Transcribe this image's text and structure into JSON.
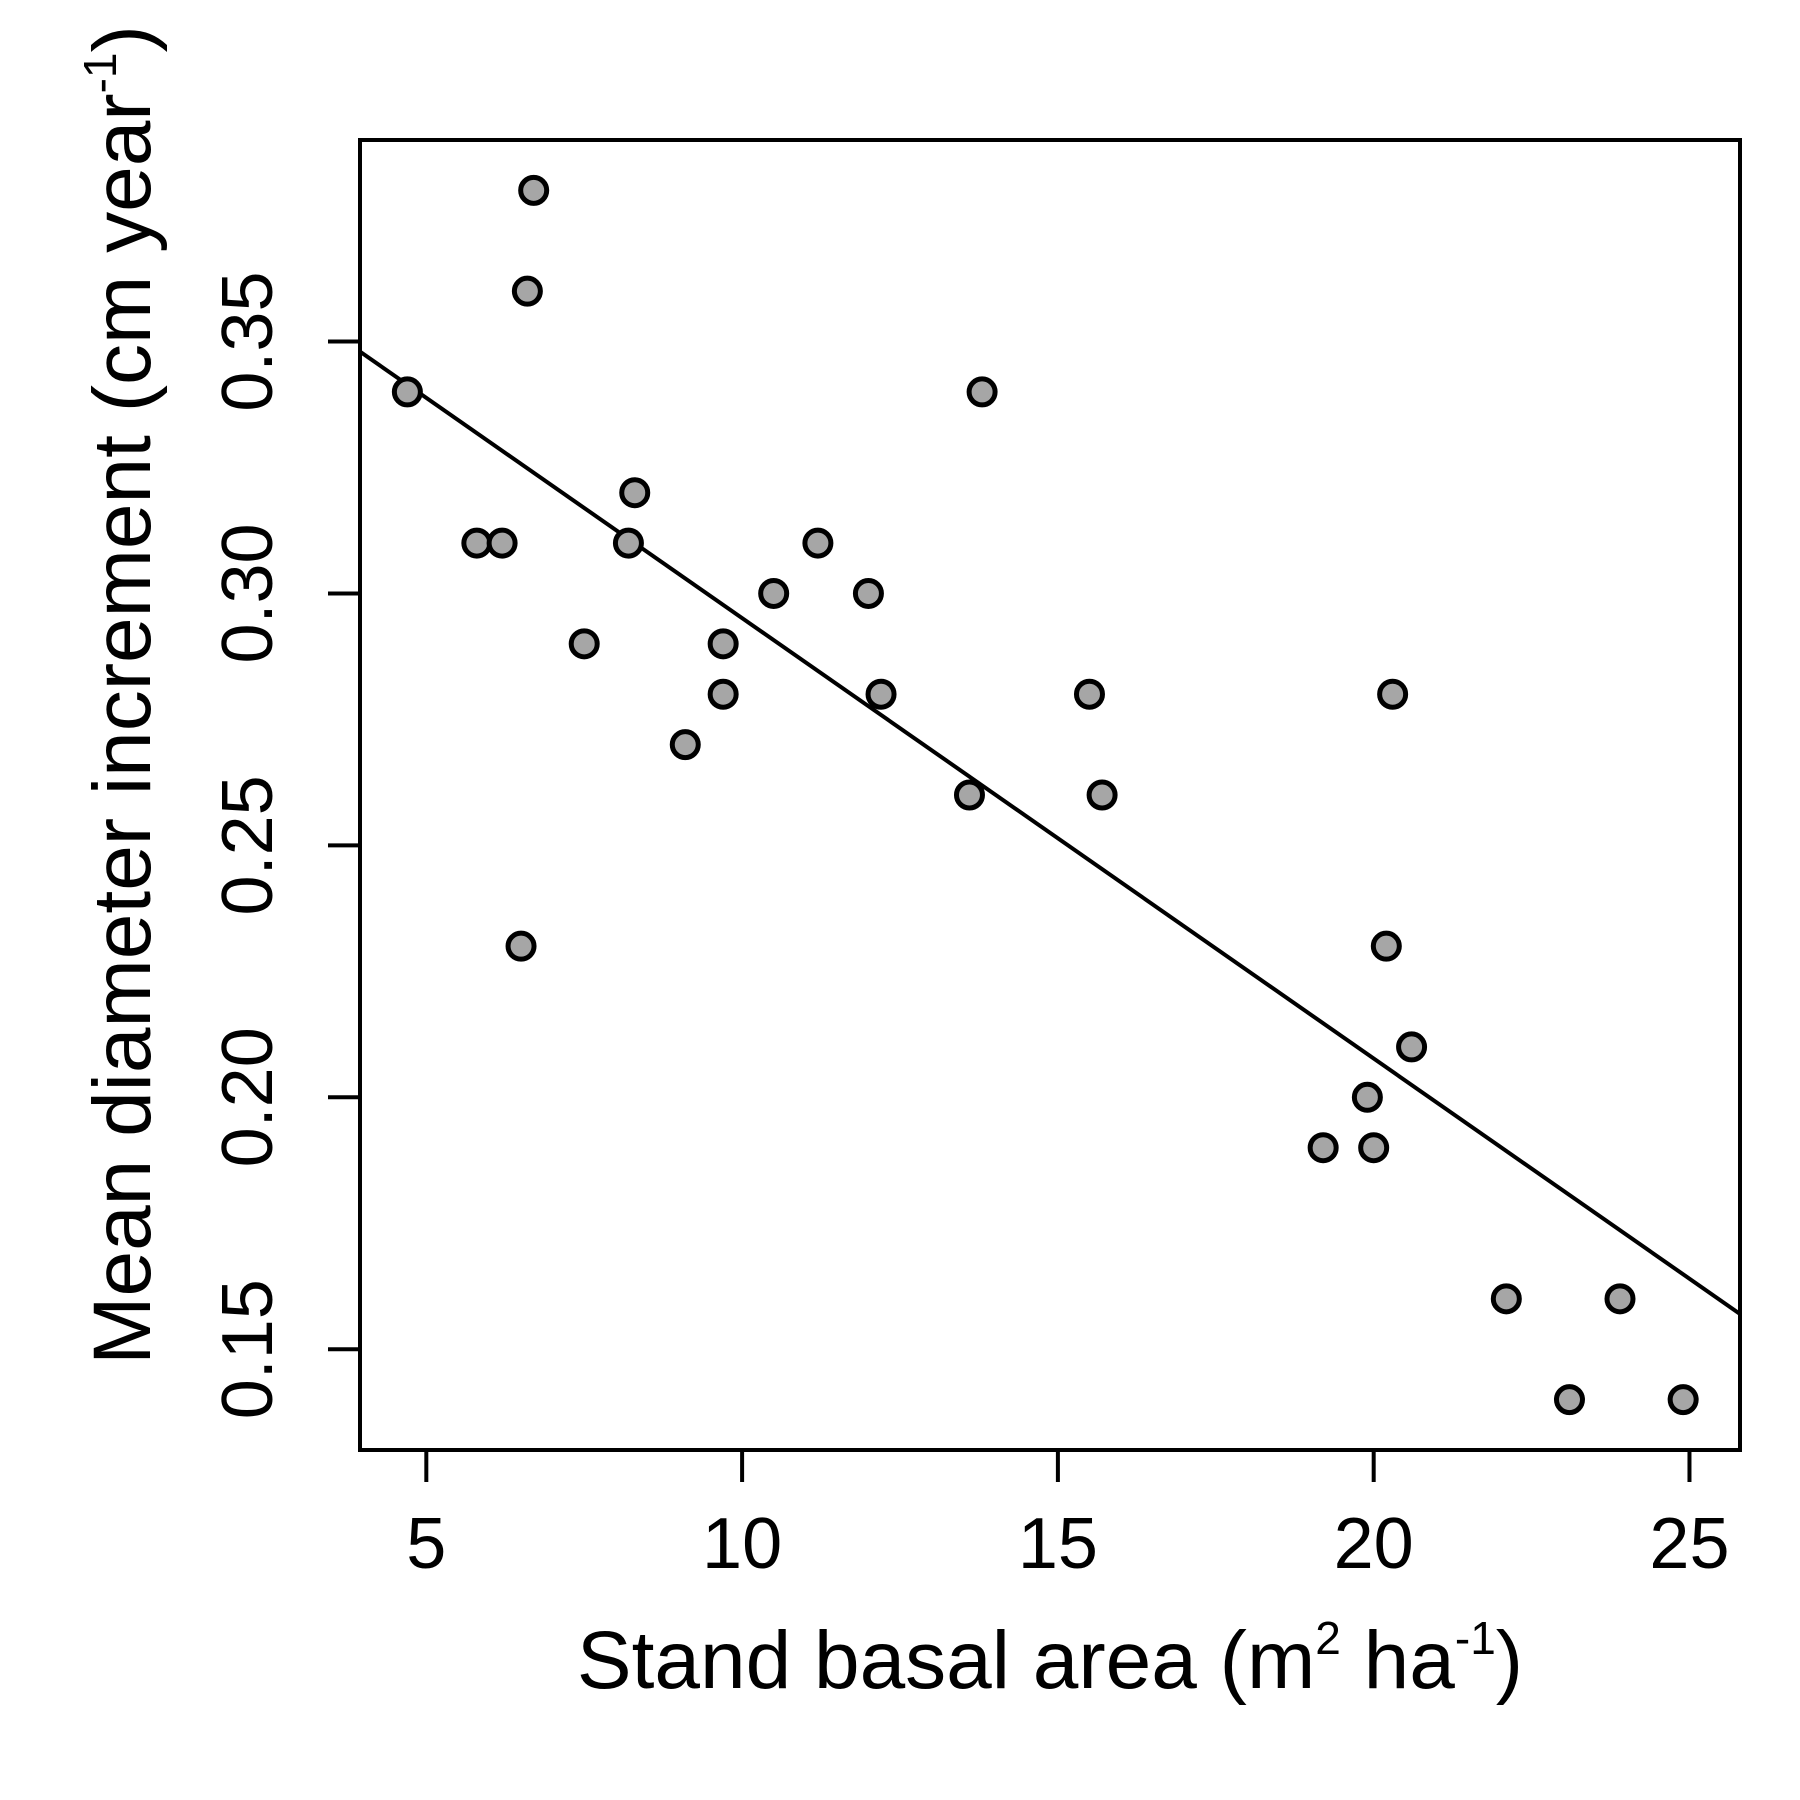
{
  "chart_data": {
    "type": "scatter",
    "title": "",
    "xlabel": {
      "main": "Stand basal area (m",
      "sup1": "2",
      "mid": " ha",
      "sup2": "-1",
      "end": ")"
    },
    "ylabel": {
      "main": "Mean diameter increment (cm year",
      "sup": "-1",
      "end": ")"
    },
    "xlim": [
      3.95,
      25.8
    ],
    "ylim": [
      0.13,
      0.39
    ],
    "x_ticks": [
      5,
      10,
      15,
      20,
      25
    ],
    "x_tick_labels": [
      "5",
      "10",
      "15",
      "20",
      "25"
    ],
    "y_ticks": [
      0.15,
      0.2,
      0.25,
      0.3,
      0.35
    ],
    "y_tick_labels": [
      "0.15",
      "0.20",
      "0.25",
      "0.30",
      "0.35"
    ],
    "grid": false,
    "legend": "none",
    "points": [
      {
        "x": 4.7,
        "y": 0.34
      },
      {
        "x": 6.7,
        "y": 0.38
      },
      {
        "x": 6.6,
        "y": 0.36
      },
      {
        "x": 5.8,
        "y": 0.31
      },
      {
        "x": 6.2,
        "y": 0.31
      },
      {
        "x": 6.5,
        "y": 0.23
      },
      {
        "x": 7.5,
        "y": 0.29
      },
      {
        "x": 8.3,
        "y": 0.32
      },
      {
        "x": 8.2,
        "y": 0.31
      },
      {
        "x": 9.1,
        "y": 0.27
      },
      {
        "x": 9.7,
        "y": 0.29
      },
      {
        "x": 9.7,
        "y": 0.28
      },
      {
        "x": 10.5,
        "y": 0.3
      },
      {
        "x": 11.2,
        "y": 0.31
      },
      {
        "x": 12.0,
        "y": 0.3
      },
      {
        "x": 12.2,
        "y": 0.28
      },
      {
        "x": 13.6,
        "y": 0.26
      },
      {
        "x": 13.8,
        "y": 0.34
      },
      {
        "x": 15.5,
        "y": 0.28
      },
      {
        "x": 15.7,
        "y": 0.26
      },
      {
        "x": 19.2,
        "y": 0.19
      },
      {
        "x": 19.9,
        "y": 0.2
      },
      {
        "x": 20.0,
        "y": 0.19
      },
      {
        "x": 20.2,
        "y": 0.23
      },
      {
        "x": 20.3,
        "y": 0.28
      },
      {
        "x": 20.6,
        "y": 0.21
      },
      {
        "x": 22.1,
        "y": 0.16
      },
      {
        "x": 23.1,
        "y": 0.14
      },
      {
        "x": 23.9,
        "y": 0.16
      },
      {
        "x": 24.9,
        "y": 0.14
      }
    ],
    "trendline": {
      "x": [
        3.95,
        25.8
      ],
      "y": [
        0.348,
        0.157
      ]
    },
    "point_fill": "#a6a6a6",
    "point_stroke": "#000000"
  }
}
